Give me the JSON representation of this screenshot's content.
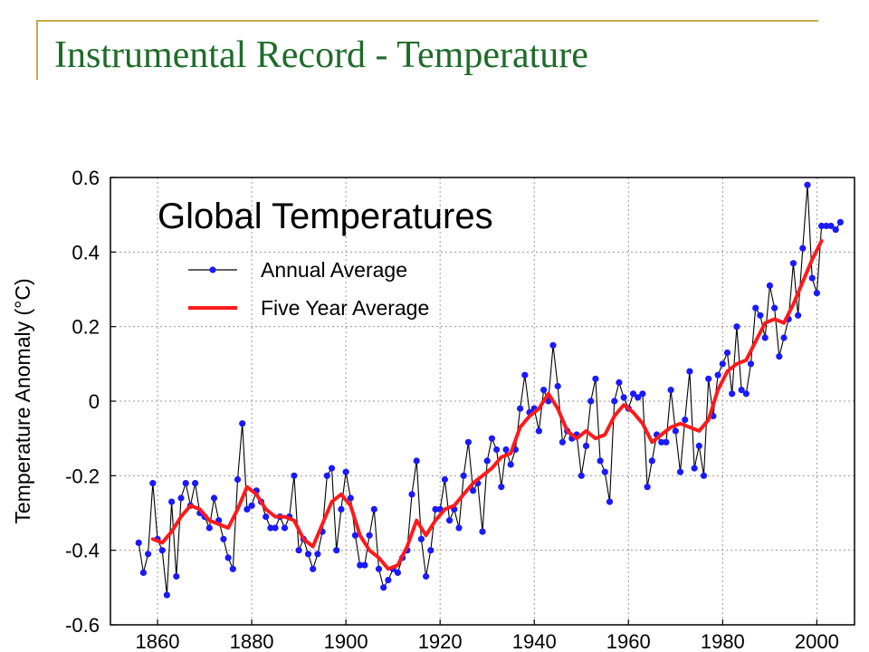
{
  "slide": {
    "title": "Instrumental Record - Temperature",
    "accent_color": "#c8a84a",
    "title_color": "#1e6b2a"
  },
  "chart_data": {
    "type": "line",
    "title": "Global Temperatures",
    "xlabel": "",
    "ylabel": "Temperature Anomaly (°C)",
    "xlim": [
      1850,
      2008
    ],
    "ylim": [
      -0.6,
      0.6
    ],
    "x_ticks": [
      "1860",
      "1880",
      "1900",
      "1920",
      "1940",
      "1960",
      "1980",
      "2000"
    ],
    "y_ticks": [
      "0.6",
      "0.4",
      "0.2",
      "0",
      "-0.2",
      "-0.4",
      "-0.6"
    ],
    "grid": true,
    "legend_position": "top-left",
    "series": [
      {
        "name": "Annual Average",
        "color": "#000000",
        "marker_color": "#1a1aff",
        "x": [
          1856,
          1857,
          1858,
          1859,
          1860,
          1861,
          1862,
          1863,
          1864,
          1865,
          1866,
          1867,
          1868,
          1869,
          1870,
          1871,
          1872,
          1873,
          1874,
          1875,
          1876,
          1877,
          1878,
          1879,
          1880,
          1881,
          1882,
          1883,
          1884,
          1885,
          1886,
          1887,
          1888,
          1889,
          1890,
          1891,
          1892,
          1893,
          1894,
          1895,
          1896,
          1897,
          1898,
          1899,
          1900,
          1901,
          1902,
          1903,
          1904,
          1905,
          1906,
          1907,
          1908,
          1909,
          1910,
          1911,
          1912,
          1913,
          1914,
          1915,
          1916,
          1917,
          1918,
          1919,
          1920,
          1921,
          1922,
          1923,
          1924,
          1925,
          1926,
          1927,
          1928,
          1929,
          1930,
          1931,
          1932,
          1933,
          1934,
          1935,
          1936,
          1937,
          1938,
          1939,
          1940,
          1941,
          1942,
          1943,
          1944,
          1945,
          1946,
          1947,
          1948,
          1949,
          1950,
          1951,
          1952,
          1953,
          1954,
          1955,
          1956,
          1957,
          1958,
          1959,
          1960,
          1961,
          1962,
          1963,
          1964,
          1965,
          1966,
          1967,
          1968,
          1969,
          1970,
          1971,
          1972,
          1973,
          1974,
          1975,
          1976,
          1977,
          1978,
          1979,
          1980,
          1981,
          1982,
          1983,
          1984,
          1985,
          1986,
          1987,
          1988,
          1989,
          1990,
          1991,
          1992,
          1993,
          1994,
          1995,
          1996,
          1997,
          1998,
          1999,
          2000,
          2001,
          2002,
          2003,
          2004,
          2005
        ],
        "values": [
          -0.38,
          -0.46,
          -0.41,
          -0.22,
          -0.37,
          -0.4,
          -0.52,
          -0.27,
          -0.47,
          -0.26,
          -0.22,
          -0.28,
          -0.22,
          -0.3,
          -0.31,
          -0.34,
          -0.26,
          -0.32,
          -0.37,
          -0.42,
          -0.45,
          -0.21,
          -0.06,
          -0.29,
          -0.28,
          -0.24,
          -0.27,
          -0.31,
          -0.34,
          -0.34,
          -0.31,
          -0.34,
          -0.31,
          -0.2,
          -0.4,
          -0.37,
          -0.41,
          -0.45,
          -0.41,
          -0.35,
          -0.2,
          -0.18,
          -0.4,
          -0.29,
          -0.19,
          -0.26,
          -0.36,
          -0.44,
          -0.44,
          -0.36,
          -0.29,
          -0.45,
          -0.5,
          -0.48,
          -0.45,
          -0.46,
          -0.42,
          -0.4,
          -0.25,
          -0.16,
          -0.37,
          -0.47,
          -0.4,
          -0.29,
          -0.29,
          -0.21,
          -0.32,
          -0.29,
          -0.34,
          -0.2,
          -0.11,
          -0.24,
          -0.22,
          -0.35,
          -0.16,
          -0.1,
          -0.13,
          -0.23,
          -0.13,
          -0.17,
          -0.13,
          -0.02,
          0.07,
          -0.03,
          -0.02,
          -0.08,
          0.03,
          0.0,
          0.15,
          0.04,
          -0.11,
          -0.08,
          -0.1,
          -0.09,
          -0.2,
          -0.12,
          0.0,
          0.06,
          -0.16,
          -0.19,
          -0.27,
          0.0,
          0.05,
          0.01,
          -0.02,
          0.02,
          0.01,
          0.02,
          -0.23,
          -0.16,
          -0.09,
          -0.11,
          -0.11,
          0.03,
          -0.08,
          -0.19,
          -0.05,
          0.08,
          -0.18,
          -0.12,
          -0.2,
          0.06,
          -0.04,
          0.07,
          0.1,
          0.13,
          0.02,
          0.2,
          0.03,
          0.02,
          0.1,
          0.25,
          0.23,
          0.17,
          0.31,
          0.25,
          0.12,
          0.17,
          0.22,
          0.37,
          0.23,
          0.41,
          0.58,
          0.33,
          0.29,
          0.47,
          0.47,
          0.47,
          0.46,
          0.48
        ]
      },
      {
        "name": "Five Year Average",
        "color": "#ff1a1a",
        "x": [
          1859,
          1861,
          1863,
          1865,
          1867,
          1869,
          1871,
          1873,
          1875,
          1877,
          1879,
          1881,
          1883,
          1885,
          1887,
          1889,
          1891,
          1893,
          1895,
          1897,
          1899,
          1901,
          1903,
          1905,
          1907,
          1909,
          1911,
          1913,
          1915,
          1917,
          1919,
          1921,
          1923,
          1925,
          1927,
          1929,
          1931,
          1933,
          1935,
          1937,
          1939,
          1941,
          1943,
          1945,
          1947,
          1949,
          1951,
          1953,
          1955,
          1957,
          1959,
          1961,
          1963,
          1965,
          1967,
          1969,
          1971,
          1973,
          1975,
          1977,
          1979,
          1981,
          1983,
          1985,
          1987,
          1989,
          1991,
          1993,
          1995,
          1997,
          1999,
          2001
        ],
        "values": [
          -0.37,
          -0.38,
          -0.35,
          -0.31,
          -0.28,
          -0.29,
          -0.32,
          -0.33,
          -0.34,
          -0.29,
          -0.23,
          -0.25,
          -0.29,
          -0.31,
          -0.31,
          -0.32,
          -0.37,
          -0.39,
          -0.33,
          -0.27,
          -0.25,
          -0.28,
          -0.36,
          -0.4,
          -0.42,
          -0.45,
          -0.44,
          -0.39,
          -0.32,
          -0.36,
          -0.32,
          -0.29,
          -0.28,
          -0.25,
          -0.22,
          -0.2,
          -0.18,
          -0.15,
          -0.14,
          -0.07,
          -0.04,
          -0.02,
          0.02,
          -0.02,
          -0.08,
          -0.1,
          -0.08,
          -0.1,
          -0.09,
          -0.04,
          -0.01,
          -0.03,
          -0.06,
          -0.11,
          -0.09,
          -0.07,
          -0.06,
          -0.07,
          -0.08,
          -0.05,
          0.03,
          0.08,
          0.1,
          0.11,
          0.16,
          0.21,
          0.22,
          0.21,
          0.26,
          0.32,
          0.38,
          0.43
        ]
      }
    ]
  }
}
